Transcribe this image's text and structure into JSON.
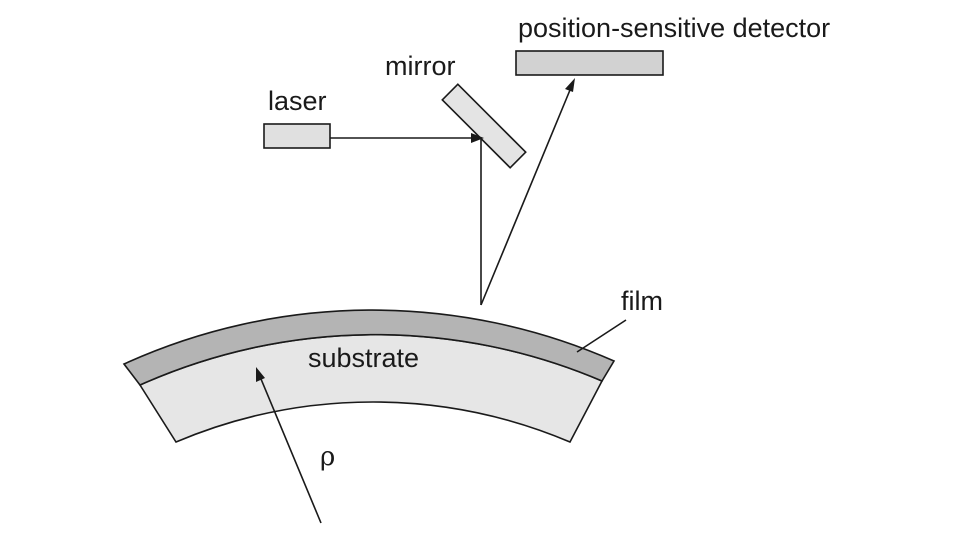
{
  "labels": {
    "detector": "position-sensitive detector",
    "mirror": "mirror",
    "laser": "laser",
    "film": "film",
    "substrate": "substrate",
    "radius": "ρ"
  },
  "colors": {
    "film": "#b4b4b4",
    "substrate": "#e6e6e6",
    "laser": "#e0e0e0",
    "mirror": "#e4e4e4",
    "detector": "#d2d2d2",
    "line": "#1a1a1a"
  }
}
